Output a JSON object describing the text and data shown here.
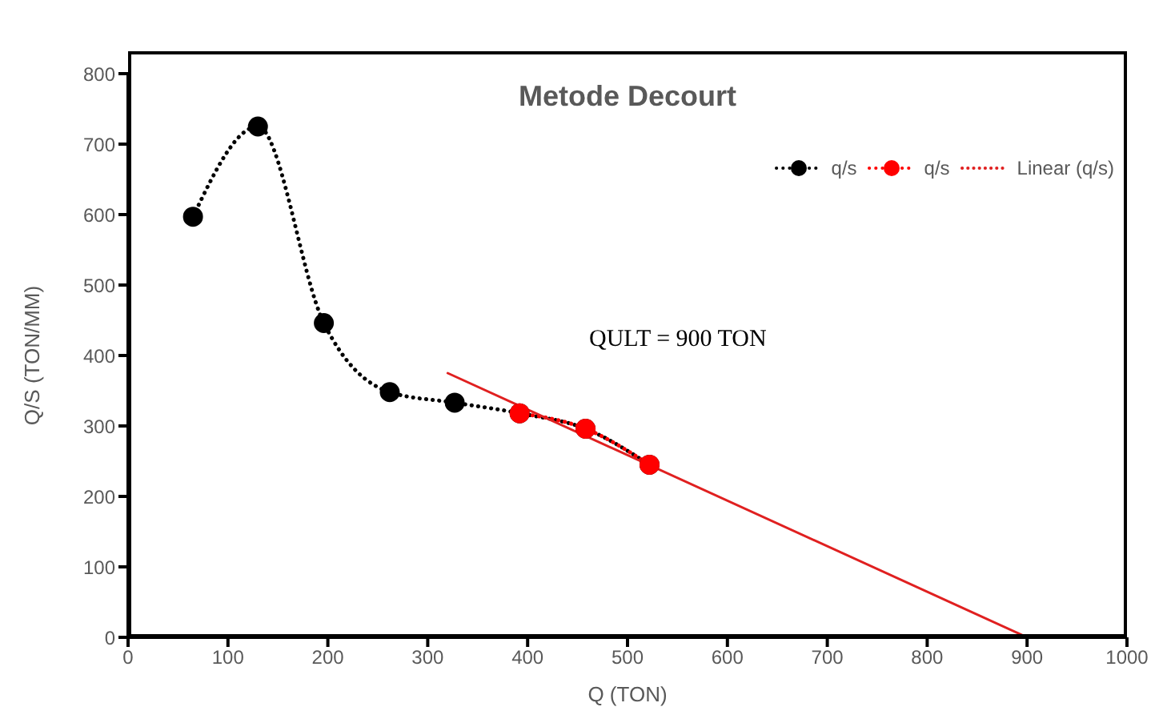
{
  "chart_data": {
    "type": "line",
    "title": "Metode Decourt",
    "xlabel": "Q (TON)",
    "ylabel": "Q/S (TON/MM)",
    "annotations": [
      "QULT = 900 TON"
    ],
    "xlim": [
      0,
      1000
    ],
    "xticks": [
      0,
      100,
      200,
      300,
      400,
      500,
      600,
      700,
      800,
      900,
      1000
    ],
    "ylim": [
      0,
      800
    ],
    "yticks": [
      0,
      100,
      200,
      300,
      400,
      500,
      600,
      700,
      800
    ],
    "grid": false,
    "legend": "top right",
    "series": [
      {
        "name": "q/s",
        "color": "#000000",
        "marker": "circle",
        "line_style": "dotted",
        "x": [
          65,
          130,
          196,
          262,
          327,
          392,
          458,
          522
        ],
        "values": [
          597,
          725,
          446,
          348,
          333,
          318,
          296,
          245
        ]
      },
      {
        "name": "q/s",
        "color": "#ff0000",
        "marker": "circle",
        "line_style": "dotted",
        "x": [
          392,
          458,
          522
        ],
        "values": [
          318,
          296,
          245
        ]
      },
      {
        "name": "Linear (q/s)",
        "color": "#e02020",
        "marker": "none",
        "line_style": "solid",
        "x": [
          320,
          900
        ],
        "values": [
          375,
          0
        ]
      }
    ]
  }
}
